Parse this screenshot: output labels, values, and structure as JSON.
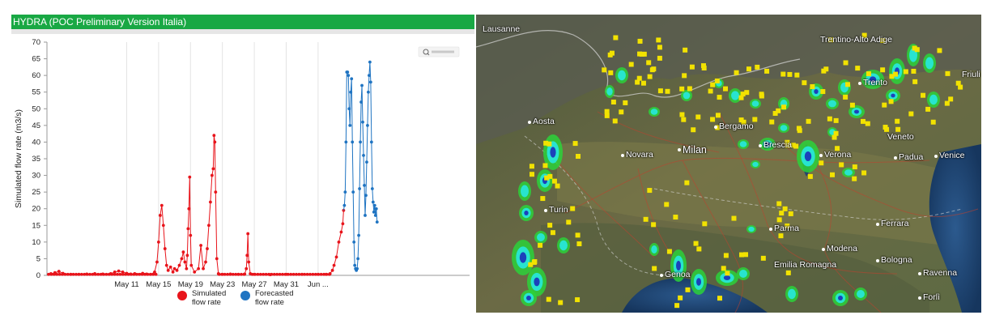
{
  "header": {
    "title": "HYDRA  (POC Preliminary Version Italia)"
  },
  "chart_data": {
    "type": "line",
    "ylabel": "Simulated flow rate (m3/s)",
    "xlabel": "",
    "ylim": [
      0,
      70
    ],
    "yticks": [
      0,
      5,
      10,
      15,
      20,
      25,
      30,
      35,
      40,
      45,
      50,
      55,
      60,
      65,
      70
    ],
    "xlim": [
      0,
      53
    ],
    "xticks": [
      {
        "x": 10,
        "label": "May 11"
      },
      {
        "x": 14,
        "label": "May 15"
      },
      {
        "x": 18,
        "label": "May 19"
      },
      {
        "x": 22,
        "label": "May 23"
      },
      {
        "x": 26,
        "label": "May 27"
      },
      {
        "x": 30,
        "label": "May 31"
      },
      {
        "x": 34,
        "label": "Jun ..."
      }
    ],
    "grid": "vertical",
    "legend_position": "bottom",
    "series": [
      {
        "name": "Simulated flow rate",
        "color": "#e8141b",
        "points": [
          [
            0.5,
            0.5
          ],
          [
            1,
            0.8
          ],
          [
            1.5,
            1.2
          ],
          [
            2,
            0.6
          ],
          [
            3,
            0.3
          ],
          [
            4,
            0.3
          ],
          [
            5,
            0.4
          ],
          [
            6,
            0.5
          ],
          [
            7,
            0.4
          ],
          [
            8,
            0.5
          ],
          [
            8.5,
            1
          ],
          [
            9,
            1.3
          ],
          [
            9.5,
            1
          ],
          [
            10,
            0.6
          ],
          [
            10.5,
            0.4
          ],
          [
            11,
            0.5
          ],
          [
            12,
            0.6
          ],
          [
            12.5,
            0.4
          ],
          [
            13,
            0.3
          ],
          [
            13.5,
            1
          ],
          [
            13.8,
            4
          ],
          [
            14,
            10
          ],
          [
            14.2,
            18
          ],
          [
            14.4,
            21
          ],
          [
            14.6,
            15
          ],
          [
            14.8,
            8
          ],
          [
            15,
            3
          ],
          [
            15.2,
            1.5
          ],
          [
            15.5,
            2.5
          ],
          [
            15.8,
            1
          ],
          [
            16,
            2
          ],
          [
            16.3,
            1.5
          ],
          [
            16.6,
            3
          ],
          [
            16.9,
            5
          ],
          [
            17.1,
            7
          ],
          [
            17.3,
            4
          ],
          [
            17.5,
            2
          ],
          [
            17.6,
            6
          ],
          [
            17.7,
            14
          ],
          [
            17.8,
            20
          ],
          [
            17.9,
            29.5
          ],
          [
            18,
            12
          ],
          [
            18.1,
            3
          ],
          [
            18.5,
            1
          ],
          [
            19,
            2
          ],
          [
            19.3,
            9
          ],
          [
            19.6,
            2
          ],
          [
            19.9,
            4
          ],
          [
            20.1,
            8
          ],
          [
            20.3,
            15
          ],
          [
            20.5,
            22
          ],
          [
            20.7,
            30
          ],
          [
            20.85,
            32
          ],
          [
            20.95,
            42
          ],
          [
            21.05,
            40
          ],
          [
            21.15,
            25
          ],
          [
            21.3,
            5
          ],
          [
            21.5,
            0.5
          ],
          [
            22,
            0.3
          ],
          [
            23,
            0.4
          ],
          [
            24,
            0.3
          ],
          [
            24.8,
            0.4
          ],
          [
            25,
            2
          ],
          [
            25.1,
            6
          ],
          [
            25.2,
            12.5
          ],
          [
            25.3,
            4
          ],
          [
            25.5,
            0.5
          ],
          [
            26,
            0.3
          ],
          [
            28,
            0.2
          ],
          [
            30,
            0.3
          ],
          [
            32,
            0.3
          ],
          [
            34,
            0.3
          ],
          [
            35,
            0.3
          ],
          [
            35.5,
            0.5
          ],
          [
            35.8,
            1.5
          ],
          [
            36,
            3
          ],
          [
            36.3,
            5.5
          ],
          [
            36.6,
            10
          ],
          [
            36.9,
            13
          ],
          [
            37.1,
            15.5
          ],
          [
            37.2,
            19.5
          ]
        ]
      },
      {
        "name": "Forecasted flow rate",
        "color": "#1f74c2",
        "points": [
          [
            37.3,
            21
          ],
          [
            37.4,
            25
          ],
          [
            37.5,
            40
          ],
          [
            37.6,
            61
          ],
          [
            37.7,
            61
          ],
          [
            37.8,
            60
          ],
          [
            37.9,
            50
          ],
          [
            38,
            45
          ],
          [
            38.1,
            55
          ],
          [
            38.2,
            59
          ],
          [
            38.3,
            40
          ],
          [
            38.4,
            25
          ],
          [
            38.5,
            10
          ],
          [
            38.6,
            3
          ],
          [
            38.7,
            2
          ],
          [
            38.8,
            1.5
          ],
          [
            38.9,
            2
          ],
          [
            39,
            5
          ],
          [
            39.1,
            12
          ],
          [
            39.2,
            26
          ],
          [
            39.3,
            40
          ],
          [
            39.4,
            52
          ],
          [
            39.5,
            57
          ],
          [
            39.6,
            46
          ],
          [
            39.7,
            36
          ],
          [
            39.8,
            27
          ],
          [
            39.9,
            18
          ],
          [
            40,
            24
          ],
          [
            40.1,
            34
          ],
          [
            40.2,
            45
          ],
          [
            40.3,
            55
          ],
          [
            40.4,
            60
          ],
          [
            40.5,
            64
          ],
          [
            40.6,
            58
          ],
          [
            40.7,
            40
          ],
          [
            40.8,
            26
          ],
          [
            40.9,
            22
          ],
          [
            41,
            19
          ],
          [
            41.1,
            21
          ],
          [
            41.2,
            18
          ],
          [
            41.3,
            20
          ],
          [
            41.4,
            16
          ]
        ]
      }
    ]
  },
  "legend": {
    "simulated_label": "Simulated flow rate",
    "forecast_label": "Forecasted flow rate"
  },
  "map": {
    "cities": [
      {
        "name": "Lausanne"
      },
      {
        "name": "Aosta"
      },
      {
        "name": "Trentino-Alto Adige"
      },
      {
        "name": "Trento"
      },
      {
        "name": "Friuli"
      },
      {
        "name": "Bergamo"
      },
      {
        "name": "Brescia"
      },
      {
        "name": "Veneto"
      },
      {
        "name": "Novara"
      },
      {
        "name": "Milan"
      },
      {
        "name": "Verona"
      },
      {
        "name": "Padua"
      },
      {
        "name": "Venice"
      },
      {
        "name": "Turin"
      },
      {
        "name": "Parma"
      },
      {
        "name": "Ferrara"
      },
      {
        "name": "Modena"
      },
      {
        "name": "Bologna"
      },
      {
        "name": "Emilia Romagna"
      },
      {
        "name": "Genoa"
      },
      {
        "name": "Ravenna"
      },
      {
        "name": "Forlì"
      }
    ]
  }
}
